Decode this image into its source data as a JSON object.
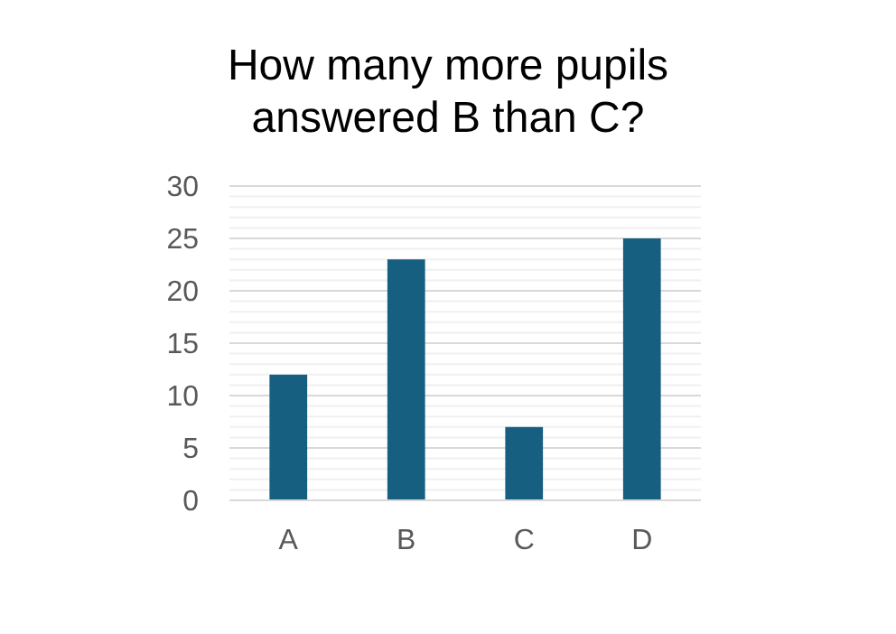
{
  "chart_data": {
    "type": "bar",
    "title": "How many more pupils answered B than C?",
    "categories": [
      "A",
      "B",
      "C",
      "D"
    ],
    "values": [
      12,
      23,
      7,
      25
    ],
    "color": "#175f80",
    "ylim": [
      0,
      30
    ],
    "yticks": [
      0,
      {
        "value": 1,
        "label": null
      },
      {
        "value": 2,
        "label": null
      },
      {
        "value": 3,
        "label": null
      },
      {
        "value": 4,
        "label": null
      },
      5,
      {
        "value": 6,
        "label": null
      },
      {
        "value": 7,
        "label": null
      },
      {
        "value": 8,
        "label": null
      },
      {
        "value": 9,
        "label": null
      },
      10,
      {
        "value": 11,
        "label": null
      },
      {
        "value": 12,
        "label": null
      },
      {
        "value": 13,
        "label": null
      },
      {
        "value": 14,
        "label": null
      },
      15,
      {
        "value": 16,
        "label": null
      },
      {
        "value": 17,
        "label": null
      },
      {
        "value": 18,
        "label": null
      },
      {
        "value": 19,
        "label": null
      },
      20,
      {
        "value": 21,
        "label": null
      },
      {
        "value": 22,
        "label": null
      },
      {
        "value": 23,
        "label": null
      },
      {
        "value": 24,
        "label": null
      },
      25,
      {
        "value": 26,
        "label": null
      },
      {
        "value": 27,
        "label": null
      },
      {
        "value": 28,
        "label": null
      },
      {
        "value": 29,
        "label": null
      },
      30
    ],
    "grid": "y"
  }
}
